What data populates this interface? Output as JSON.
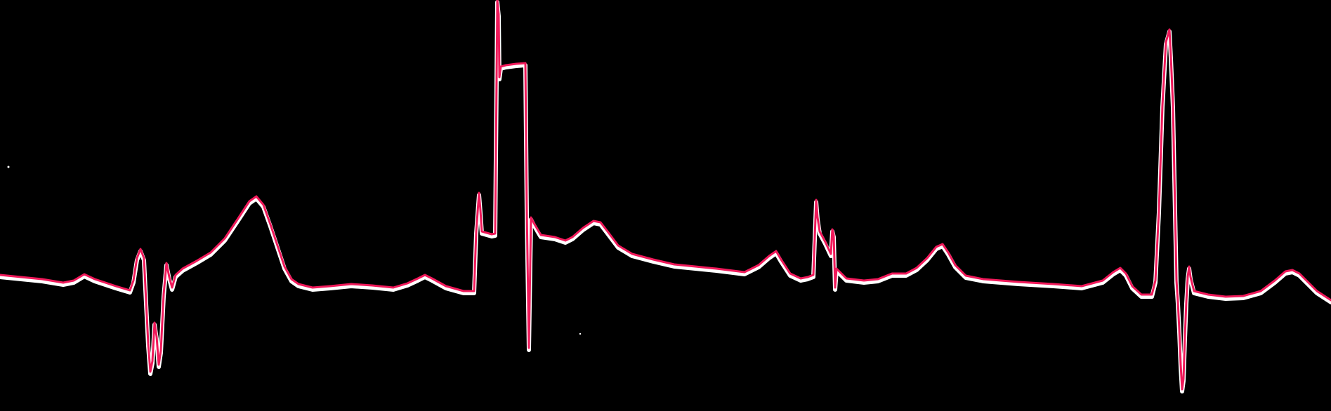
{
  "colors": {
    "background": "#000000",
    "trace": "#f0195a",
    "trace_halo": "#ffffff"
  },
  "chart_data": {
    "type": "line",
    "title": "",
    "xlabel": "",
    "ylabel": "",
    "grid": false,
    "legend": "none",
    "xlim": [
      0,
      1895
    ],
    "ylim": [
      -586,
      0
    ],
    "series": [
      {
        "points": [
          [
            0,
            -392
          ],
          [
            30,
            -395
          ],
          [
            60,
            -398
          ],
          [
            90,
            -403
          ],
          [
            105,
            -400
          ],
          [
            120,
            -391
          ],
          [
            135,
            -398
          ],
          [
            165,
            -408
          ],
          [
            185,
            -414
          ],
          [
            190,
            -400
          ],
          [
            195,
            -368
          ],
          [
            200,
            -355
          ],
          [
            205,
            -368
          ],
          [
            208,
            -430
          ],
          [
            211,
            -490
          ],
          [
            214,
            -530
          ],
          [
            217,
            -515
          ],
          [
            220,
            -460
          ],
          [
            223,
            -480
          ],
          [
            226,
            -520
          ],
          [
            229,
            -500
          ],
          [
            233,
            -420
          ],
          [
            237,
            -375
          ],
          [
            241,
            -395
          ],
          [
            245,
            -410
          ],
          [
            250,
            -392
          ],
          [
            260,
            -383
          ],
          [
            280,
            -372
          ],
          [
            300,
            -360
          ],
          [
            320,
            -340
          ],
          [
            340,
            -310
          ],
          [
            355,
            -287
          ],
          [
            365,
            -280
          ],
          [
            375,
            -292
          ],
          [
            385,
            -320
          ],
          [
            395,
            -350
          ],
          [
            405,
            -380
          ],
          [
            415,
            -398
          ],
          [
            425,
            -405
          ],
          [
            445,
            -410
          ],
          [
            470,
            -408
          ],
          [
            500,
            -405
          ],
          [
            530,
            -407
          ],
          [
            560,
            -410
          ],
          [
            580,
            -404
          ],
          [
            595,
            -397
          ],
          [
            605,
            -392
          ],
          [
            615,
            -397
          ],
          [
            635,
            -408
          ],
          [
            660,
            -415
          ],
          [
            675,
            -415
          ],
          [
            678,
            -330
          ],
          [
            682,
            -275
          ],
          [
            684,
            -300
          ],
          [
            686,
            -330
          ],
          [
            700,
            -334
          ],
          [
            705,
            -333
          ],
          [
            707,
            -115
          ],
          [
            708,
            0
          ],
          [
            710,
            -20
          ],
          [
            711,
            -110
          ],
          [
            713,
            -95
          ],
          [
            720,
            -93
          ],
          [
            735,
            -91
          ],
          [
            748,
            -90
          ],
          [
            750,
            -300
          ],
          [
            753,
            -496
          ],
          [
            756,
            -310
          ],
          [
            760,
            -318
          ],
          [
            770,
            -335
          ],
          [
            790,
            -338
          ],
          [
            805,
            -343
          ],
          [
            815,
            -338
          ],
          [
            830,
            -325
          ],
          [
            845,
            -315
          ],
          [
            855,
            -317
          ],
          [
            865,
            -330
          ],
          [
            880,
            -350
          ],
          [
            900,
            -362
          ],
          [
            930,
            -370
          ],
          [
            960,
            -377
          ],
          [
            990,
            -380
          ],
          [
            1020,
            -383
          ],
          [
            1060,
            -388
          ],
          [
            1080,
            -378
          ],
          [
            1095,
            -365
          ],
          [
            1105,
            -358
          ],
          [
            1112,
            -370
          ],
          [
            1125,
            -390
          ],
          [
            1140,
            -397
          ],
          [
            1150,
            -395
          ],
          [
            1158,
            -392
          ],
          [
            1162,
            -285
          ],
          [
            1164,
            -310
          ],
          [
            1167,
            -330
          ],
          [
            1175,
            -345
          ],
          [
            1183,
            -362
          ],
          [
            1185,
            -327
          ],
          [
            1187,
            -335
          ],
          [
            1189,
            -410
          ],
          [
            1191,
            -383
          ],
          [
            1195,
            -387
          ],
          [
            1205,
            -397
          ],
          [
            1230,
            -400
          ],
          [
            1250,
            -398
          ],
          [
            1270,
            -390
          ],
          [
            1290,
            -390
          ],
          [
            1305,
            -382
          ],
          [
            1320,
            -368
          ],
          [
            1333,
            -352
          ],
          [
            1342,
            -348
          ],
          [
            1350,
            -360
          ],
          [
            1360,
            -378
          ],
          [
            1375,
            -393
          ],
          [
            1400,
            -398
          ],
          [
            1450,
            -402
          ],
          [
            1500,
            -405
          ],
          [
            1540,
            -408
          ],
          [
            1570,
            -400
          ],
          [
            1585,
            -388
          ],
          [
            1595,
            -382
          ],
          [
            1603,
            -390
          ],
          [
            1612,
            -408
          ],
          [
            1625,
            -420
          ],
          [
            1640,
            -420
          ],
          [
            1645,
            -400
          ],
          [
            1650,
            -300
          ],
          [
            1655,
            -150
          ],
          [
            1660,
            -60
          ],
          [
            1665,
            -42
          ],
          [
            1667,
            -80
          ],
          [
            1670,
            -150
          ],
          [
            1673,
            -300
          ],
          [
            1675,
            -400
          ],
          [
            1677,
            -430
          ],
          [
            1679,
            -470
          ],
          [
            1681,
            -520
          ],
          [
            1683,
            -555
          ],
          [
            1685,
            -540
          ],
          [
            1687,
            -480
          ],
          [
            1689,
            -430
          ],
          [
            1691,
            -395
          ],
          [
            1693,
            -380
          ],
          [
            1695,
            -395
          ],
          [
            1700,
            -415
          ],
          [
            1720,
            -420
          ],
          [
            1745,
            -423
          ],
          [
            1770,
            -422
          ],
          [
            1795,
            -415
          ],
          [
            1815,
            -400
          ],
          [
            1830,
            -387
          ],
          [
            1840,
            -385
          ],
          [
            1850,
            -390
          ],
          [
            1860,
            -400
          ],
          [
            1875,
            -415
          ],
          [
            1895,
            -428
          ]
        ]
      }
    ]
  }
}
